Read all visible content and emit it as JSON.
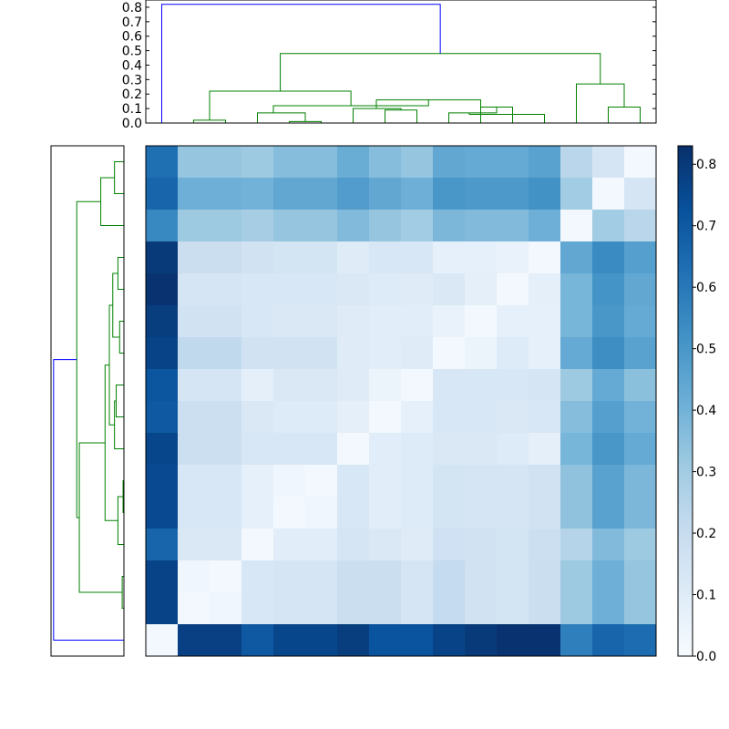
{
  "chart_data": {
    "type": "heatmap",
    "title": "",
    "colormap": "Blues",
    "color_min": "#f7fbff",
    "color_max": "#08306b",
    "link_color_top": "#0000ff",
    "link_color_cluster": "#008000",
    "values": [
      [
        0.63,
        0.33,
        0.33,
        0.31,
        0.36,
        0.36,
        0.42,
        0.36,
        0.33,
        0.44,
        0.43,
        0.43,
        0.46,
        0.24,
        0.14,
        0.02
      ],
      [
        0.66,
        0.41,
        0.41,
        0.4,
        0.44,
        0.44,
        0.48,
        0.44,
        0.41,
        0.5,
        0.49,
        0.49,
        0.52,
        0.3,
        0.02,
        0.14
      ],
      [
        0.55,
        0.31,
        0.31,
        0.29,
        0.33,
        0.33,
        0.37,
        0.33,
        0.3,
        0.38,
        0.37,
        0.37,
        0.41,
        0.02,
        0.3,
        0.24
      ],
      [
        0.8,
        0.19,
        0.19,
        0.16,
        0.15,
        0.15,
        0.1,
        0.13,
        0.13,
        0.07,
        0.07,
        0.06,
        0.02,
        0.44,
        0.54,
        0.47
      ],
      [
        0.82,
        0.14,
        0.14,
        0.13,
        0.13,
        0.13,
        0.12,
        0.11,
        0.1,
        0.12,
        0.08,
        0.02,
        0.08,
        0.39,
        0.51,
        0.44
      ],
      [
        0.79,
        0.16,
        0.16,
        0.13,
        0.12,
        0.12,
        0.1,
        0.09,
        0.09,
        0.06,
        0.02,
        0.07,
        0.07,
        0.39,
        0.5,
        0.43
      ],
      [
        0.77,
        0.22,
        0.22,
        0.16,
        0.16,
        0.16,
        0.1,
        0.09,
        0.1,
        0.02,
        0.05,
        0.11,
        0.07,
        0.43,
        0.53,
        0.46
      ],
      [
        0.71,
        0.14,
        0.14,
        0.08,
        0.12,
        0.12,
        0.1,
        0.05,
        0.02,
        0.13,
        0.13,
        0.13,
        0.14,
        0.31,
        0.43,
        0.35
      ],
      [
        0.7,
        0.18,
        0.18,
        0.12,
        0.11,
        0.11,
        0.08,
        0.02,
        0.07,
        0.13,
        0.13,
        0.12,
        0.13,
        0.36,
        0.47,
        0.4
      ],
      [
        0.76,
        0.18,
        0.18,
        0.13,
        0.13,
        0.13,
        0.02,
        0.09,
        0.11,
        0.12,
        0.12,
        0.11,
        0.08,
        0.39,
        0.5,
        0.43
      ],
      [
        0.75,
        0.13,
        0.13,
        0.07,
        0.03,
        0.02,
        0.13,
        0.09,
        0.11,
        0.15,
        0.14,
        0.14,
        0.16,
        0.34,
        0.46,
        0.38
      ],
      [
        0.75,
        0.13,
        0.13,
        0.07,
        0.02,
        0.03,
        0.13,
        0.09,
        0.11,
        0.15,
        0.14,
        0.14,
        0.16,
        0.34,
        0.46,
        0.38
      ],
      [
        0.66,
        0.12,
        0.12,
        0.02,
        0.09,
        0.09,
        0.14,
        0.12,
        0.1,
        0.17,
        0.16,
        0.15,
        0.18,
        0.25,
        0.37,
        0.31
      ],
      [
        0.77,
        0.03,
        0.02,
        0.13,
        0.14,
        0.14,
        0.19,
        0.19,
        0.14,
        0.21,
        0.16,
        0.15,
        0.19,
        0.31,
        0.41,
        0.33
      ],
      [
        0.77,
        0.02,
        0.03,
        0.13,
        0.14,
        0.14,
        0.19,
        0.19,
        0.14,
        0.21,
        0.16,
        0.15,
        0.19,
        0.31,
        0.41,
        0.33
      ],
      [
        0.02,
        0.78,
        0.78,
        0.7,
        0.76,
        0.76,
        0.79,
        0.72,
        0.72,
        0.77,
        0.8,
        0.82,
        0.82,
        0.58,
        0.66,
        0.64
      ]
    ],
    "colorbar": {
      "ticks": [
        "0.0",
        "0.1",
        "0.2",
        "0.3",
        "0.4",
        "0.5",
        "0.6",
        "0.7",
        "0.8"
      ],
      "tick_values": [
        0,
        0.1,
        0.2,
        0.3,
        0.4,
        0.5,
        0.6,
        0.7,
        0.8
      ],
      "range": [
        0,
        0.83
      ]
    },
    "top_dendrogram": {
      "ylim": [
        0,
        0.85
      ],
      "yticks": [
        "0.0",
        "0.1",
        "0.2",
        "0.3",
        "0.4",
        "0.5",
        "0.6",
        "0.7",
        "0.8"
      ],
      "ytick_values": [
        0,
        0.1,
        0.2,
        0.3,
        0.4,
        0.5,
        0.6,
        0.7,
        0.8
      ],
      "links": [
        {
          "left": "L1",
          "right": "L2",
          "height": 0.02
        },
        {
          "left": "L4",
          "right": "L5",
          "height": 0.01
        },
        {
          "left": "L3",
          "right": "N2",
          "height": 0.07
        },
        {
          "left": "L8",
          "right": "L9",
          "height": 0.09
        },
        {
          "left": "L10",
          "right": "L11",
          "height": 0.11
        },
        {
          "left": "L12",
          "right": "L13",
          "height": 0.07
        },
        {
          "left": "L7",
          "right": "L8_9",
          "height": 0.0
        },
        {
          "left": "N1",
          "right": "N3",
          "height": 0.22
        },
        {
          "left": "L14",
          "right": "L15",
          "height": 0.11
        },
        {
          "left": "L13_",
          "right": "N9",
          "height": 0.27
        }
      ]
    },
    "left_dendrogram": {
      "orientation": "left"
    }
  }
}
